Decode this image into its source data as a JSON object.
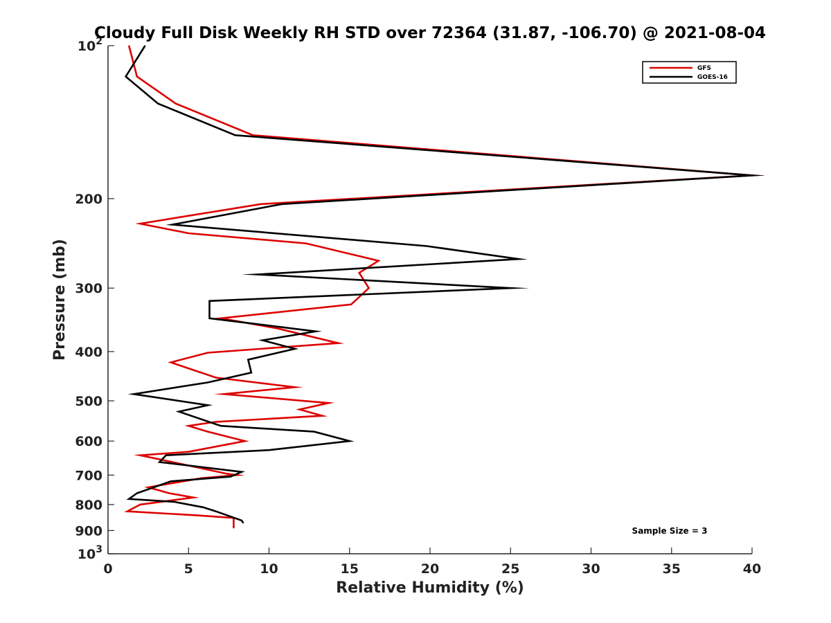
{
  "chart_data": {
    "type": "line",
    "title": "Cloudy Full Disk Weekly RH STD over 72364 (31.87, -106.70) @ 2021-08-04",
    "xlabel": "Relative Humidity (%)",
    "ylabel": "Pressure (mb)",
    "xlim": [
      0,
      40
    ],
    "ylim": [
      100,
      1000
    ],
    "y_scale": "log",
    "y_reversed": true,
    "x_ticks": [
      "0",
      "5",
      "10",
      "15",
      "20",
      "25",
      "30",
      "35",
      "40"
    ],
    "y_ticks": [
      {
        "value": 100,
        "base": "10",
        "exp": "2"
      },
      {
        "value": 200,
        "label": "200"
      },
      {
        "value": 300,
        "label": "300"
      },
      {
        "value": 400,
        "label": "400"
      },
      {
        "value": 500,
        "label": "500"
      },
      {
        "value": 600,
        "label": "600"
      },
      {
        "value": 700,
        "label": "700"
      },
      {
        "value": 800,
        "label": "800"
      },
      {
        "value": 900,
        "label": "900"
      },
      {
        "value": 1000,
        "base": "10",
        "exp": "3"
      }
    ],
    "legend_position": "top-right",
    "annotation": "Sample Size = 3",
    "series": [
      {
        "name": "GFS",
        "color": "#dd0000",
        "points": [
          [
            1.3,
            100
          ],
          [
            1.8,
            115
          ],
          [
            4.2,
            130
          ],
          [
            9.0,
            150
          ],
          [
            40.0,
            180
          ],
          [
            9.5,
            205
          ],
          [
            2.0,
            224
          ],
          [
            5.0,
            234
          ],
          [
            12.3,
            245
          ],
          [
            16.8,
            265
          ],
          [
            15.6,
            280
          ],
          [
            16.2,
            300
          ],
          [
            15.1,
            323
          ],
          [
            7.0,
            344
          ],
          [
            10.5,
            360
          ],
          [
            14.3,
            385
          ],
          [
            6.2,
            402
          ],
          [
            3.9,
            420
          ],
          [
            6.7,
            450
          ],
          [
            11.6,
            470
          ],
          [
            7.2,
            485
          ],
          [
            13.7,
            505
          ],
          [
            11.9,
            520
          ],
          [
            13.3,
            535
          ],
          [
            6.7,
            550
          ],
          [
            5.0,
            560
          ],
          [
            6.2,
            575
          ],
          [
            8.5,
            600
          ],
          [
            5.0,
            630
          ],
          [
            2.0,
            640
          ],
          [
            4.0,
            660
          ],
          [
            7.3,
            695
          ],
          [
            8.0,
            700
          ],
          [
            5.8,
            710
          ],
          [
            2.5,
            740
          ],
          [
            3.8,
            760
          ],
          [
            5.3,
            775
          ],
          [
            2.0,
            800
          ],
          [
            1.2,
            825
          ],
          [
            5.5,
            840
          ],
          [
            7.8,
            850
          ],
          [
            7.8,
            890
          ]
        ]
      },
      {
        "name": "GOES-16",
        "color": "#000000",
        "points": [
          [
            2.3,
            100
          ],
          [
            1.1,
            115
          ],
          [
            3.1,
            130
          ],
          [
            7.9,
            150
          ],
          [
            40.0,
            180
          ],
          [
            10.8,
            205
          ],
          [
            4.0,
            225
          ],
          [
            19.8,
            248
          ],
          [
            25.5,
            263
          ],
          [
            9.3,
            282
          ],
          [
            25.0,
            300
          ],
          [
            6.3,
            318
          ],
          [
            6.3,
            344
          ],
          [
            12.9,
            365
          ],
          [
            9.6,
            380
          ],
          [
            11.6,
            395
          ],
          [
            8.7,
            415
          ],
          [
            8.9,
            440
          ],
          [
            6.2,
            460
          ],
          [
            1.6,
            485
          ],
          [
            6.2,
            510
          ],
          [
            4.4,
            525
          ],
          [
            7.0,
            560
          ],
          [
            12.8,
            575
          ],
          [
            15.0,
            600
          ],
          [
            10.0,
            625
          ],
          [
            3.6,
            640
          ],
          [
            3.2,
            660
          ],
          [
            8.3,
            690
          ],
          [
            7.6,
            705
          ],
          [
            3.9,
            720
          ],
          [
            1.8,
            760
          ],
          [
            1.3,
            780
          ],
          [
            4.1,
            790
          ],
          [
            5.9,
            810
          ],
          [
            6.7,
            825
          ],
          [
            8.3,
            860
          ],
          [
            8.4,
            870
          ]
        ]
      }
    ]
  }
}
